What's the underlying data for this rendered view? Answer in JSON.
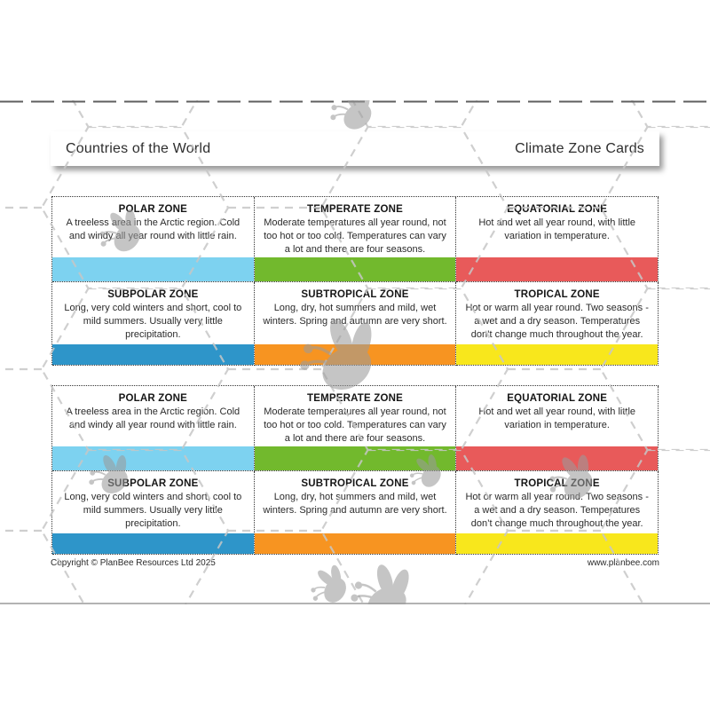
{
  "header": {
    "left": "Countries of the World",
    "right": "Climate Zone Cards"
  },
  "footer": {
    "left": "Copyright © PlanBee Resources Ltd 2025",
    "right": "www.planbee.com"
  },
  "cards": [
    {
      "title": "POLAR ZONE",
      "body": "A treeless area in the Arctic region. Cold and windy all year round with little rain.",
      "color": "#7DD2F0"
    },
    {
      "title": "TEMPERATE ZONE",
      "body": "Moderate temperatures all year round, not too hot or too cold. Temperatures can vary a lot and there are four seasons.",
      "color": "#72B92D"
    },
    {
      "title": "EQUATORIAL ZONE",
      "body": "Hot and wet all year round, with little variation in temperature.",
      "color": "#E85A5A"
    },
    {
      "title": "SUBPOLAR ZONE",
      "body": "Long, very cold winters and short, cool to mild summers. Usually very little precipitation.",
      "color": "#2E95C9"
    },
    {
      "title": "SUBTROPICAL ZONE",
      "body": "Long, dry, hot summers and mild, wet winters. Spring and autumn are very short.",
      "color": "#F79421"
    },
    {
      "title": "TROPICAL ZONE",
      "body": "Hot or warm all year round. Two seasons - a wet and a dry season. Temperatures don’t change much throughout the year.",
      "color": "#F8E71C"
    }
  ],
  "sets": 2,
  "icons": {
    "watermark": "bee-icon"
  },
  "colors": {
    "card_border": "#333333",
    "watermark_grey": "#c6c6c6",
    "paper": "#ffffff"
  }
}
